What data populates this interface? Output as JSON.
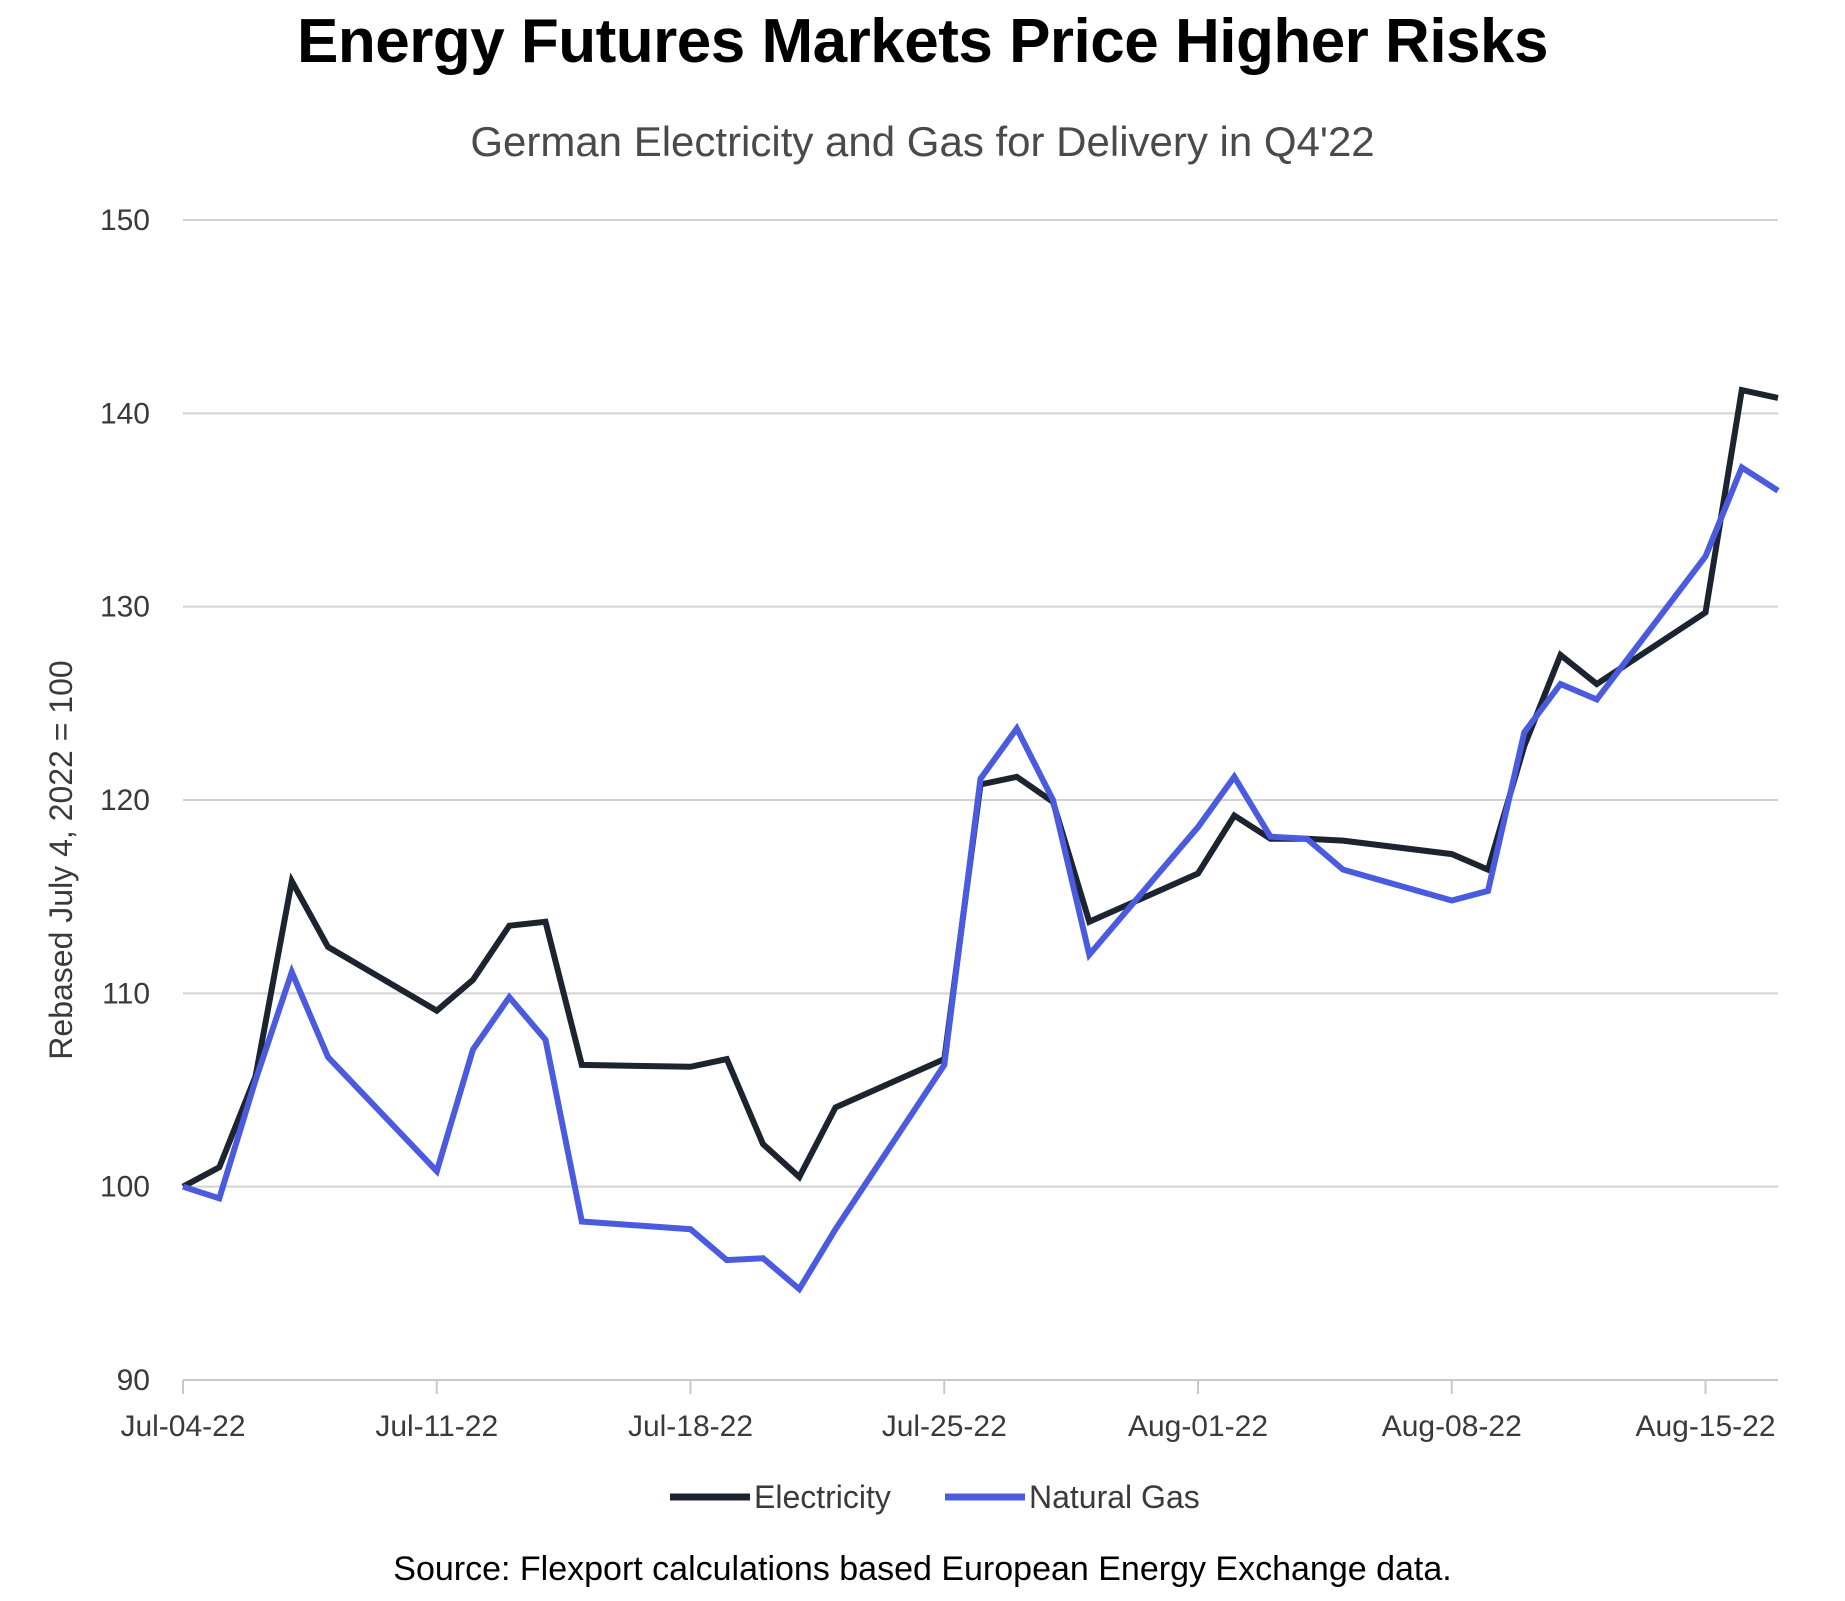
{
  "chart_data": {
    "type": "line",
    "title": "Energy Futures Markets Price Higher Risks",
    "subtitle": "German Electricity and Gas for Delivery in Q4'22",
    "ylabel": "Rebased July 4, 2022 = 100",
    "xlabel": "",
    "ylim": [
      90,
      150
    ],
    "yticks": [
      90,
      100,
      110,
      120,
      130,
      140,
      150
    ],
    "ytick_labels": [
      "90",
      "100",
      "110",
      "120",
      "130",
      "140",
      "150"
    ],
    "xlim": [
      0,
      44
    ],
    "xticks": [
      0,
      7,
      14,
      21,
      28,
      35,
      42
    ],
    "xtick_labels": [
      "Jul-04-22",
      "Jul-11-22",
      "Jul-18-22",
      "Jul-25-22",
      "Aug-01-22",
      "Aug-08-22",
      "Aug-15-22"
    ],
    "grid": true,
    "legend_position": "bottom-center",
    "x": [
      0,
      1,
      2,
      3,
      4,
      7,
      8,
      9,
      10,
      11,
      14,
      15,
      16,
      17,
      18,
      21,
      22,
      23,
      24,
      25,
      28,
      29,
      30,
      31,
      32,
      35,
      36,
      37,
      38,
      39,
      42,
      43,
      44
    ],
    "series": [
      {
        "name": "Electricity",
        "color": "#1c2430",
        "values": [
          100,
          101,
          105.7,
          115.8,
          112.4,
          109.1,
          110.7,
          113.5,
          113.7,
          106.3,
          106.2,
          106.6,
          102.2,
          100.5,
          104.1,
          106.6,
          120.8,
          121.2,
          119.9,
          113.7,
          116.2,
          119.2,
          118,
          118,
          117.9,
          117.2,
          116.4,
          122.8,
          127.5,
          126,
          129.7,
          141.2,
          140.8
        ]
      },
      {
        "name": "Natural Gas",
        "color": "#4a5be0",
        "values": [
          100,
          99.4,
          105.5,
          111.1,
          106.7,
          100.8,
          107.1,
          109.8,
          107.6,
          98.2,
          97.8,
          96.2,
          96.3,
          94.7,
          97.8,
          106.3,
          121.1,
          123.7,
          120,
          112,
          118.6,
          121.2,
          118.1,
          118,
          116.4,
          114.8,
          115.3,
          123.5,
          126,
          125.2,
          132.6,
          137.2,
          136
        ]
      }
    ],
    "source": "Source: Flexport calculations based European Energy Exchange data."
  }
}
